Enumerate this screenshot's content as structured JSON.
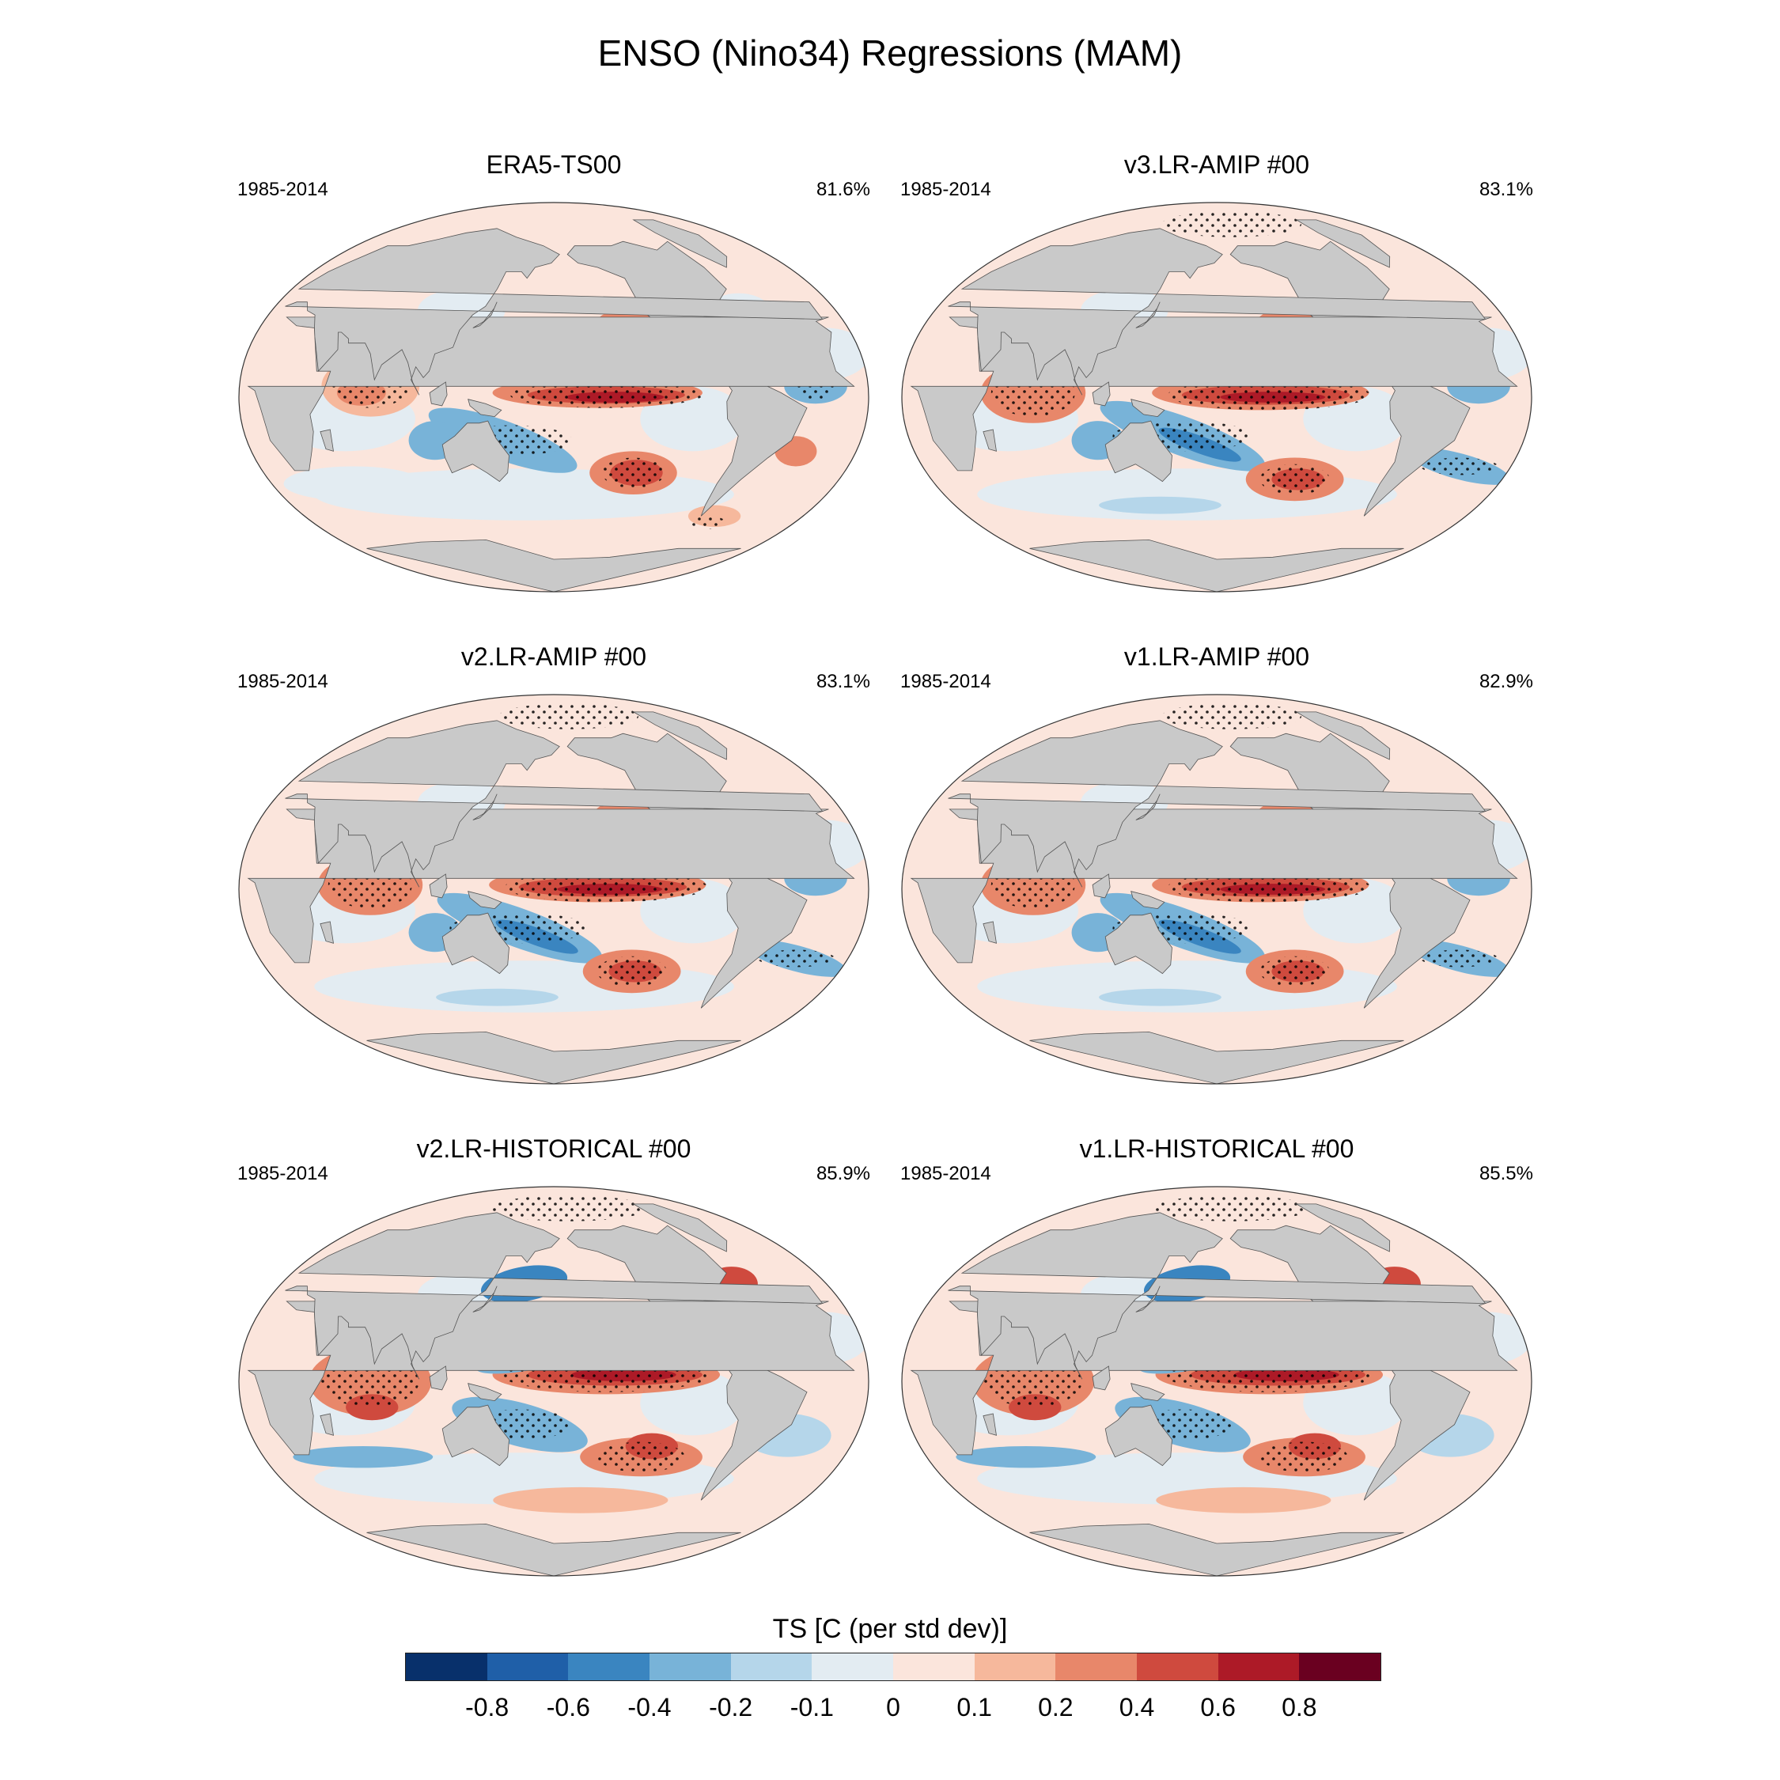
{
  "title": "ENSO (Nino34) Regressions (MAM)",
  "panels": [
    {
      "title": "ERA5-TS00",
      "years": "1985-2014",
      "pct": "81.6%",
      "style": "obs"
    },
    {
      "title": "v3.LR-AMIP  #00",
      "years": "1985-2014",
      "pct": "83.1%",
      "style": "amip"
    },
    {
      "title": "v2.LR-AMIP  #00",
      "years": "1985-2014",
      "pct": "83.1%",
      "style": "amip"
    },
    {
      "title": "v1.LR-AMIP  #00",
      "years": "1985-2014",
      "pct": "82.9%",
      "style": "amip"
    },
    {
      "title": "v2.LR-HISTORICAL  #00",
      "years": "1985-2014",
      "pct": "85.9%",
      "style": "hist"
    },
    {
      "title": "v1.LR-HISTORICAL  #00",
      "years": "1985-2014",
      "pct": "85.5%",
      "style": "hist"
    }
  ],
  "colorbar": {
    "title": "TS [C (per std dev)]",
    "labels": [
      "-0.8",
      "-0.6",
      "-0.4",
      "-0.2",
      "-0.1",
      "0",
      "0.1",
      "0.2",
      "0.4",
      "0.6",
      "0.8"
    ],
    "colors": [
      "#08306b",
      "#1f5fa8",
      "#3a85c0",
      "#78b3d8",
      "#b5d6ea",
      "#e3ecf2",
      "#fbe5dc",
      "#f6b89c",
      "#e8876a",
      "#cf4a3e",
      "#ad1a27",
      "#6a0020"
    ]
  },
  "chart_data": {
    "type": "heatmap",
    "title": "ENSO (Nino34) Regressions (MAM)",
    "variable": "TS [C (per std dev)]",
    "contour_levels": [
      -0.8,
      -0.6,
      -0.4,
      -0.2,
      -0.1,
      0,
      0.1,
      0.2,
      0.4,
      0.6,
      0.8
    ],
    "panels": [
      "ERA5-TS00",
      "v3.LR-AMIP  #00",
      "v2.LR-AMIP  #00",
      "v1.LR-AMIP  #00",
      "v2.LR-HISTORICAL  #00",
      "v1.LR-HISTORICAL  #00"
    ],
    "period": "1985-2014",
    "percent": [
      81.6,
      83.1,
      83.1,
      82.9,
      85.9,
      85.5
    ],
    "max_equatorial_pacific_anomaly": [
      0.7,
      0.9,
      0.9,
      0.9,
      0.9,
      0.9
    ]
  }
}
